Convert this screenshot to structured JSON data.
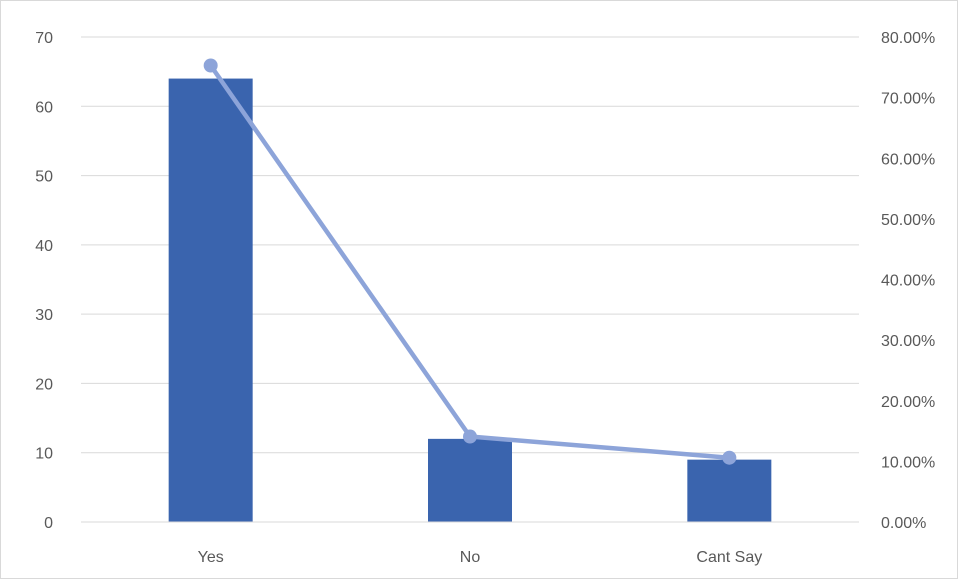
{
  "chart_data": {
    "type": "bar",
    "categories": [
      "Yes",
      "No",
      "Cant Say"
    ],
    "series": [
      {
        "type": "bar",
        "values": [
          64,
          12,
          9
        ],
        "color": "#3a64ae",
        "axis": "left"
      },
      {
        "type": "line",
        "values": [
          75.3,
          14.1,
          10.6
        ],
        "color": "#8da4d9",
        "axis": "right",
        "unit": "%"
      }
    ],
    "y_left": {
      "ylim": [
        0,
        70
      ],
      "ticks": [
        "0",
        "10",
        "20",
        "30",
        "40",
        "50",
        "60",
        "70"
      ]
    },
    "y_right": {
      "ylim": [
        0,
        80
      ],
      "ticks": [
        "0.00%",
        "10.00%",
        "20.00%",
        "30.00%",
        "40.00%",
        "50.00%",
        "60.00%",
        "70.00%",
        "80.00%"
      ]
    },
    "grid": true,
    "legend": false
  }
}
